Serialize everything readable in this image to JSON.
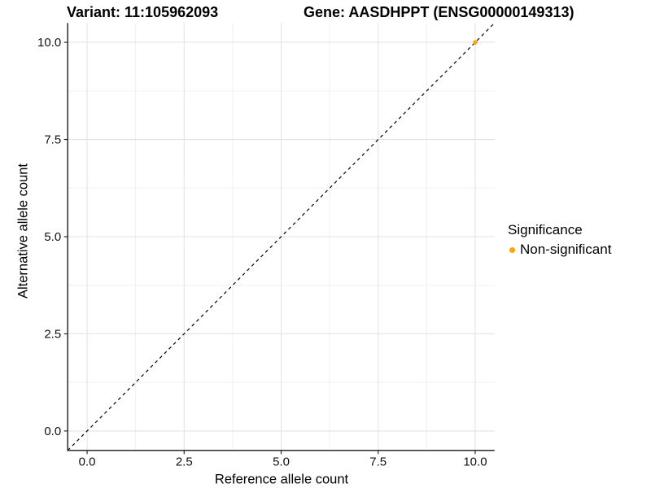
{
  "chart_data": {
    "type": "scatter",
    "titles": {
      "variant": "Variant: 11:105962093",
      "gene": "Gene: AASDHPPT (ENSG00000149313)"
    },
    "xlabel": "Reference allele count",
    "ylabel": "Alternative allele count",
    "xlim": [
      -0.5,
      10.5
    ],
    "ylim": [
      -0.5,
      10.5
    ],
    "x_ticks": [
      0,
      2.5,
      5,
      7.5,
      10
    ],
    "x_tick_labels": [
      "0.0",
      "2.5",
      "5.0",
      "7.5",
      "10.0"
    ],
    "y_ticks": [
      0,
      2.5,
      5,
      7.5,
      10
    ],
    "y_tick_labels": [
      "0.0",
      "2.5",
      "5.0",
      "7.5",
      "10.0"
    ],
    "grid": {
      "major": true,
      "minor": true
    },
    "reference_line": {
      "style": "dashed",
      "equation": "y = x",
      "from": [
        -0.5,
        -0.5
      ],
      "to": [
        10.5,
        10.5
      ],
      "color": "#000000"
    },
    "series": [
      {
        "name": "Non-significant",
        "color": "#FFA500",
        "point_radius": 2.8,
        "points": [
          [
            10,
            10
          ]
        ]
      }
    ],
    "legend": {
      "title": "Significance",
      "position": "right",
      "items": [
        {
          "label": "Non-significant",
          "color": "#FFA500"
        }
      ]
    },
    "colors": {
      "grid_major": "#E3E3E3",
      "grid_minor": "#F0F0F0",
      "axis_line": "#2b2b2b",
      "tick_text": "#111111"
    }
  }
}
